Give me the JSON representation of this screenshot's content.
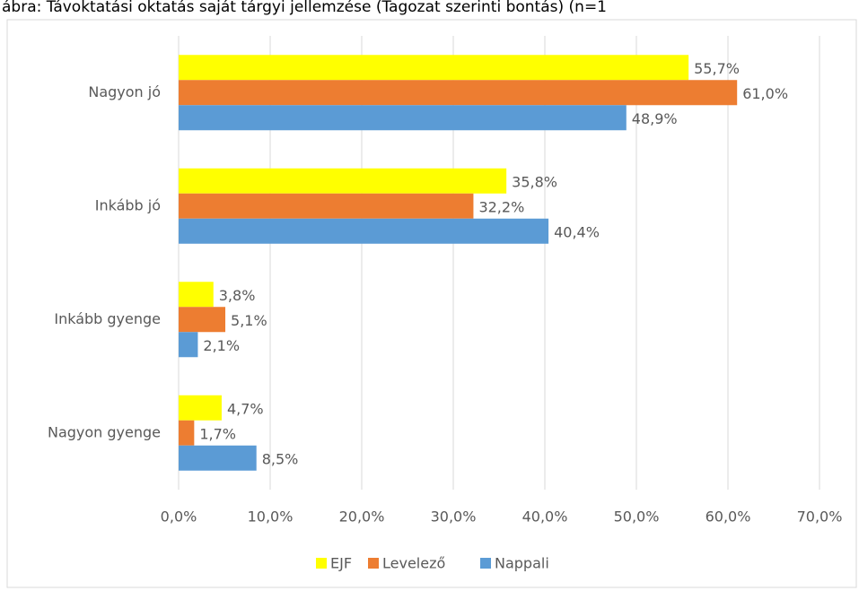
{
  "chart_data": {
    "type": "hbar",
    "title": "ábra: Távoktatási oktatás saját tárgyi jellemzése (Tagozat szerinti bontás) (n=1",
    "categories": [
      "Nagyon jó",
      "Inkább jó",
      "Inkább gyenge",
      "Nagyon gyenge"
    ],
    "series": [
      {
        "name": "EJF",
        "color": "#ffff00",
        "values": [
          55.7,
          35.8,
          3.8,
          4.7
        ],
        "value_labels": [
          "55,7%",
          "35,8%",
          "3,8%",
          "4,7%"
        ]
      },
      {
        "name": "Levelező",
        "color": "#ed7d31",
        "values": [
          61.0,
          32.2,
          5.1,
          1.7
        ],
        "value_labels": [
          "61,0%",
          "32,2%",
          "5,1%",
          "1,7%"
        ]
      },
      {
        "name": "Nappali",
        "color": "#5b9bd5",
        "values": [
          48.9,
          40.4,
          2.1,
          8.5
        ],
        "value_labels": [
          "48,9%",
          "40,4%",
          "2,1%",
          "8,5%"
        ]
      }
    ],
    "xlim": [
      0,
      70
    ],
    "xticks": [
      {
        "value": 0,
        "label": "0,0%"
      },
      {
        "value": 10,
        "label": "10,0%"
      },
      {
        "value": 20,
        "label": "20,0%"
      },
      {
        "value": 30,
        "label": "30,0%"
      },
      {
        "value": 40,
        "label": "40,0%"
      },
      {
        "value": 50,
        "label": "50,0%"
      },
      {
        "value": 60,
        "label": "60,0%"
      },
      {
        "value": 70,
        "label": "70,0%"
      }
    ],
    "grid": true,
    "legend": "bottom"
  }
}
